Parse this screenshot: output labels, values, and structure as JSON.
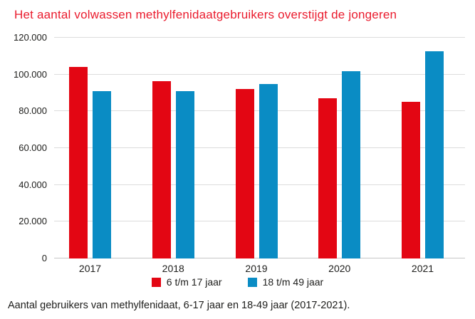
{
  "title": "Het aantal volwassen methylfenidaatgebruikers overstijgt de jongeren",
  "caption": "Aantal gebruikers van methylfenidaat, 6-17 jaar en 18-49 jaar (2017-2021).",
  "colors": {
    "title_red": "#ea1b2d",
    "bar_red": "#e30613",
    "bar_blue": "#0a8cc4",
    "gridline": "#dcdcdc",
    "zero_line": "#c6c6c6",
    "text": "#1d1d1b"
  },
  "chart_data": {
    "type": "bar",
    "categories": [
      "2017",
      "2018",
      "2019",
      "2020",
      "2021"
    ],
    "series": [
      {
        "name": "6 t/m 17 jaar",
        "color": "#e30613",
        "values": [
          104000,
          96500,
          92000,
          87000,
          85000
        ]
      },
      {
        "name": "18 t/m 49 jaar",
        "color": "#0a8cc4",
        "values": [
          91000,
          91000,
          95000,
          102000,
          112500
        ]
      }
    ],
    "title": "Het aantal volwassen methylfenidaatgebruikers overstijgt de jongeren",
    "xlabel": "",
    "ylabel": "",
    "ylim": [
      0,
      120000
    ],
    "ytick_step": 20000,
    "ytick_labels": [
      "0",
      "20.000",
      "40.000",
      "60.000",
      "80.000",
      "100.000",
      "120.000"
    ],
    "grid": true,
    "legend_position": "bottom-center"
  }
}
